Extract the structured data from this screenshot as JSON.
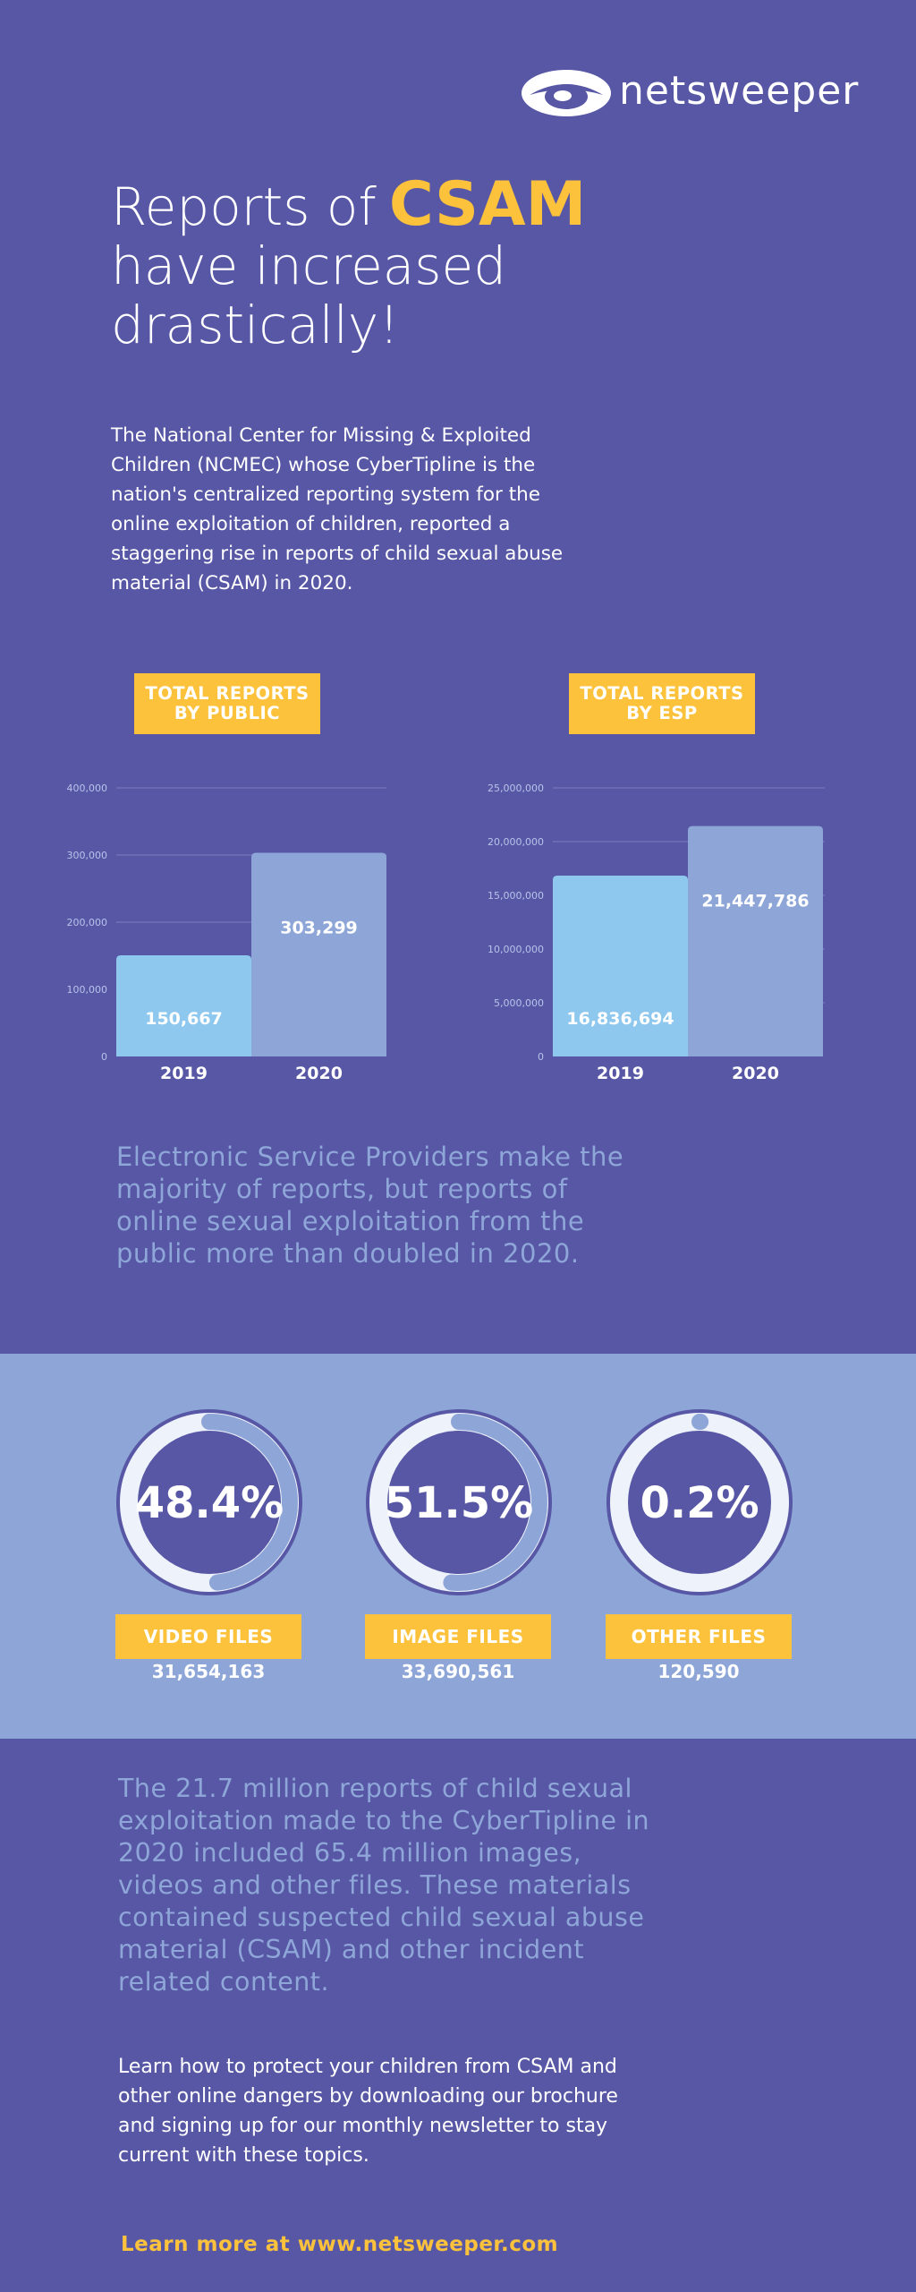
{
  "brand": {
    "name": "netsweeper",
    "colors": {
      "background": "#5757a5",
      "accent": "#fcc23c",
      "band": "#8ea6d7",
      "bar2019": "#8fc8ee",
      "bar2020": "#8ea6d7"
    }
  },
  "headline": {
    "line1_prefix": "Reports of",
    "line1_accent": "CSAM",
    "line2": "have increased",
    "line3": "drastically!"
  },
  "intro": "The National Center for Missing & Exploited Children (NCMEC) whose CyberTipline is the nation's centralized reporting system for the online exploitation of children, reported a staggering rise in reports of child sexual abuse material (CSAM) in 2020.",
  "chart_tags": {
    "public": [
      "TOTAL REPORTS",
      "BY PUBLIC"
    ],
    "esp": [
      "TOTAL REPORTS",
      "BY ESP"
    ]
  },
  "chart_data": [
    {
      "type": "bar",
      "title": "TOTAL REPORTS BY PUBLIC",
      "categories": [
        "2019",
        "2020"
      ],
      "values": [
        150667,
        303299
      ],
      "value_labels": [
        "150,667",
        "303,299"
      ],
      "ylim": [
        0,
        400000
      ],
      "yticks": [
        0,
        100000,
        200000,
        300000,
        400000
      ],
      "ytick_labels": [
        "0",
        "100,000",
        "200,000",
        "300,000",
        "400,000"
      ],
      "grid": true
    },
    {
      "type": "bar",
      "title": "TOTAL REPORTS BY ESP",
      "categories": [
        "2019",
        "2020"
      ],
      "values": [
        16836694,
        21447786
      ],
      "value_labels": [
        "16,836,694",
        "21,447,786"
      ],
      "ylim": [
        0,
        25000000
      ],
      "yticks": [
        0,
        5000000,
        10000000,
        15000000,
        20000000,
        25000000
      ],
      "ytick_labels": [
        "0",
        "5,000,000",
        "10,000,000",
        "15,000,000",
        "20,000,000",
        "25,000,000"
      ],
      "grid": true
    }
  ],
  "summary1": "Electronic Service Providers make the majority of reports, but reports of online sexual exploitation from the public more than doubled in 2020.",
  "file_types": [
    {
      "percent": "48.4%",
      "fraction": 0.484,
      "label": "VIDEO FILES",
      "count": "31,654,163"
    },
    {
      "percent": "51.5%",
      "fraction": 0.515,
      "label": "IMAGE FILES",
      "count": "33,690,561"
    },
    {
      "percent": "0.2%",
      "fraction": 0.002,
      "label": "OTHER FILES",
      "count": "120,590"
    }
  ],
  "summary2": "The 21.7 million reports of child sexual exploitation made to the CyberTipline in 2020 included 65.4 million images, videos and other files. These materials contained suspected child sexual abuse material (CSAM) and other incident related content.",
  "cta": "Learn how to protect your children from CSAM and other online dangers by downloading our brochure and signing up for our monthly newsletter to stay current with these topics.",
  "link": "Learn more at www.netsweeper.com",
  "icons": {
    "logo": "eye-logo-icon"
  }
}
